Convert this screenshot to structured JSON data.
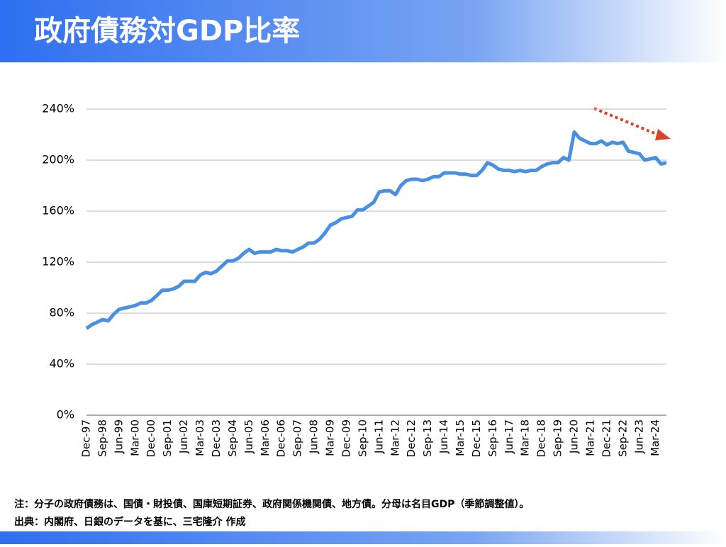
{
  "chart_data": {
    "type": "line",
    "title": "政府債務対GDP比率",
    "notes": [
      "注：分子の政府債務は、国債・財投債、国庫短期証券、政府関係機関債、地方債。分母は名目GDP（季節調整値）。",
      "出典：内閣府、日銀のデータを基に、三宅隆介 作成"
    ],
    "categories": [
      "Dec-97",
      null,
      null,
      "Sep-98",
      null,
      null,
      "Jun-99",
      null,
      null,
      "Mar-00",
      null,
      null,
      "Dec-00",
      null,
      null,
      "Sep-01",
      null,
      null,
      "Jun-02",
      null,
      null,
      "Mar-03",
      null,
      null,
      "Dec-03",
      null,
      null,
      "Sep-04",
      null,
      null,
      "Jun-05",
      null,
      null,
      "Mar-06",
      null,
      null,
      "Dec-06",
      null,
      null,
      "Sep-07",
      null,
      null,
      "Jun-08",
      null,
      null,
      "Mar-09",
      null,
      null,
      "Dec-09",
      null,
      null,
      "Sep-10",
      null,
      null,
      "Jun-11",
      null,
      null,
      "Mar-12",
      null,
      null,
      "Dec-12",
      null,
      null,
      "Sep-13",
      null,
      null,
      "Jun-14",
      null,
      null,
      "Mar-15",
      null,
      null,
      "Dec-15",
      null,
      null,
      "Sep-16",
      null,
      null,
      "Jun-17",
      null,
      null,
      "Mar-18",
      null,
      null,
      "Dec-18",
      null,
      null,
      "Sep-19",
      null,
      null,
      "Jun-20",
      null,
      null,
      "Mar-21",
      null,
      null,
      "Dec-21",
      null,
      null,
      "Sep-22",
      null,
      null,
      "Jun-23",
      null,
      null,
      "Mar-24",
      null,
      null
    ],
    "values": [
      68,
      71,
      73,
      75,
      74,
      79,
      83,
      84,
      85,
      86,
      88,
      88,
      90,
      94,
      98,
      98,
      99,
      101,
      105,
      105,
      105,
      110,
      112,
      111,
      113,
      117,
      121,
      121,
      123,
      127,
      130,
      127,
      128,
      128,
      128,
      130,
      129,
      129,
      128,
      130,
      132,
      135,
      135,
      138,
      143,
      149,
      151,
      154,
      155,
      156,
      161,
      161,
      164,
      167,
      175,
      176,
      176,
      173,
      180,
      184,
      185,
      185,
      184,
      185,
      187,
      187,
      190,
      190,
      190,
      189,
      189,
      188,
      188,
      192,
      198,
      196,
      193,
      192,
      192,
      191,
      192,
      191,
      192,
      192,
      195,
      197,
      198,
      198,
      202,
      200,
      222,
      217,
      215,
      213,
      213,
      215,
      212,
      214,
      213,
      214,
      207,
      206,
      205,
      200,
      201,
      202,
      197,
      198
    ],
    "color": "#4a90e2",
    "ylim": [
      0,
      240
    ],
    "yticks": [
      {
        "value": 0,
        "label": "0%"
      },
      {
        "value": 40,
        "label": "40%"
      },
      {
        "value": 80,
        "label": "80%"
      },
      {
        "value": 120,
        "label": "120%"
      },
      {
        "value": 160,
        "label": "160%"
      },
      {
        "value": 200,
        "label": "200%"
      },
      {
        "value": 240,
        "label": "240%"
      }
    ],
    "grid": true
  }
}
